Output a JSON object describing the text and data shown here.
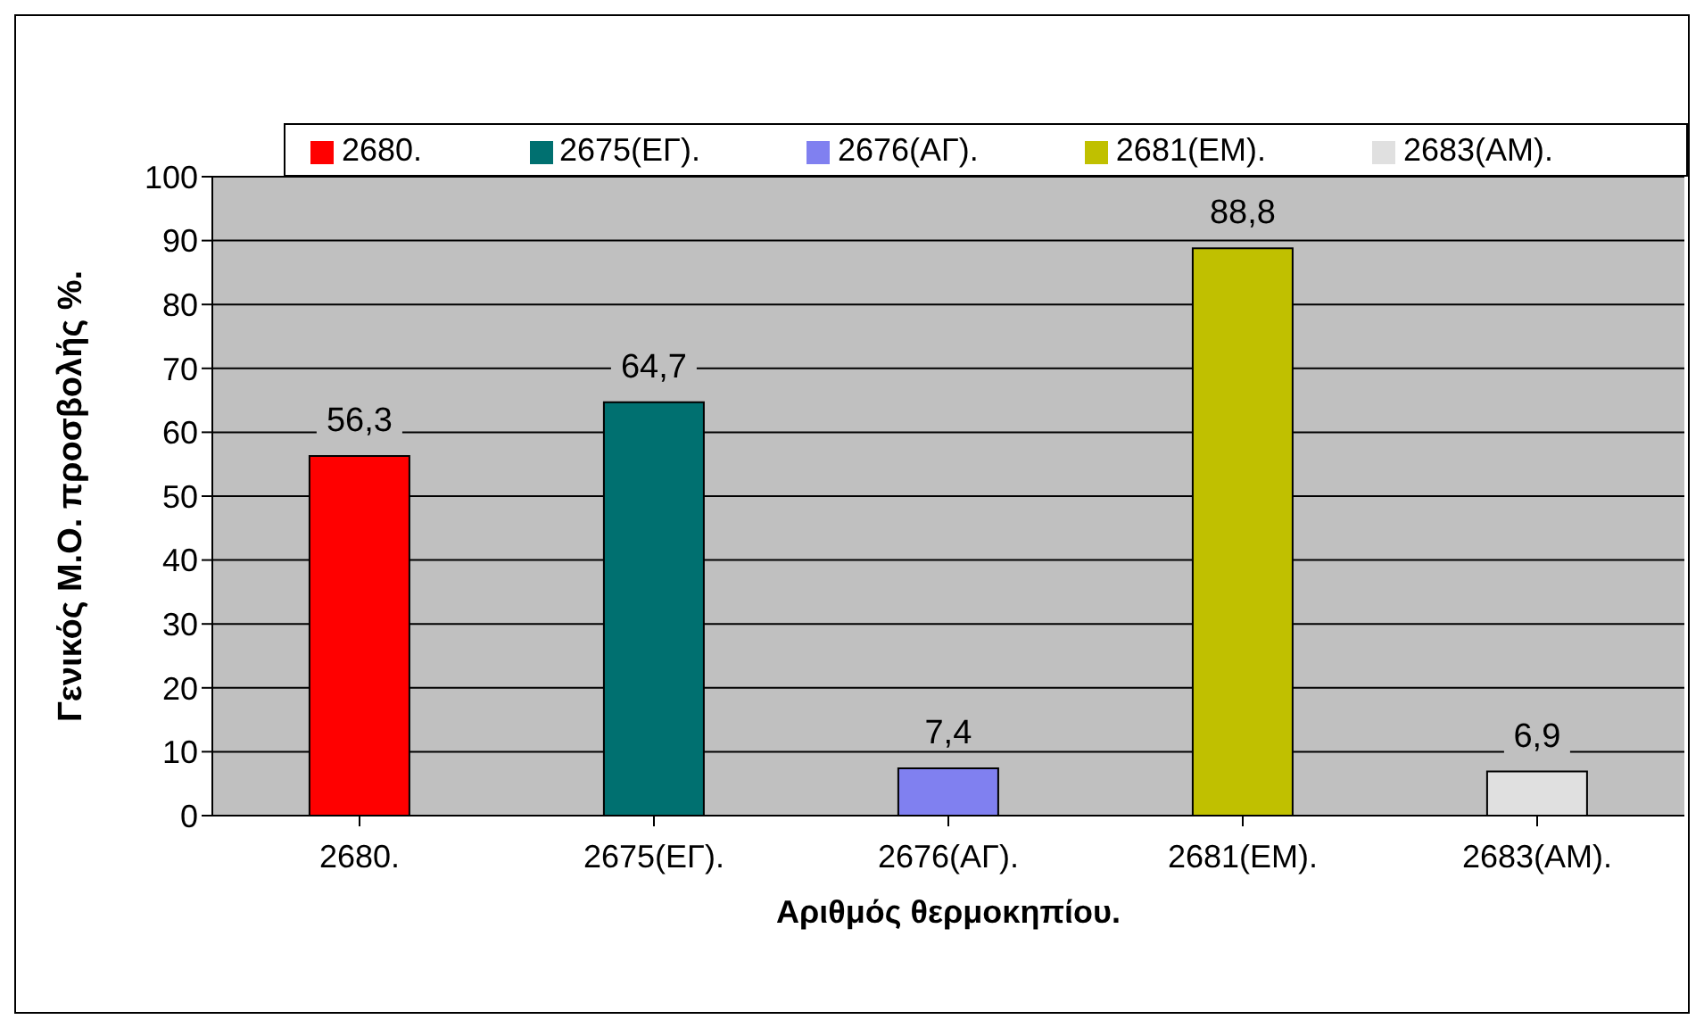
{
  "chart_data": {
    "type": "bar",
    "xlabel": "Αριθμός θερμοκηπίου.",
    "ylabel": "Γενικός Μ.Ο. προσβολής %.",
    "categories": [
      "2680.",
      "2675(ΕΓ).",
      "2676(ΑΓ).",
      "2681(ΕΜ).",
      "2683(ΑΜ)."
    ],
    "stacked": true,
    "series": [
      {
        "name": "2680.",
        "color": "#ff0000",
        "values": [
          56.3,
          null,
          null,
          null,
          null
        ],
        "value_labels": [
          "56,3",
          null,
          null,
          null,
          null
        ]
      },
      {
        "name": "2675(ΕΓ).",
        "color": "#007070",
        "values": [
          null,
          64.7,
          null,
          null,
          null
        ],
        "value_labels": [
          null,
          "64,7",
          null,
          null,
          null
        ]
      },
      {
        "name": "2676(ΑΓ).",
        "color": "#8080f0",
        "values": [
          null,
          null,
          7.4,
          null,
          null
        ],
        "value_labels": [
          null,
          null,
          "7,4",
          null,
          null
        ]
      },
      {
        "name": "2681(ΕΜ).",
        "color": "#c0c000",
        "values": [
          null,
          null,
          null,
          88.8,
          null
        ],
        "value_labels": [
          null,
          null,
          null,
          "88,8",
          null
        ]
      },
      {
        "name": "2683(ΑΜ).",
        "color": "#e0e0e0",
        "values": [
          null,
          null,
          null,
          null,
          6.9
        ],
        "value_labels": [
          null,
          null,
          null,
          null,
          "6,9"
        ]
      }
    ],
    "ylim": [
      0,
      100
    ],
    "yticks": [
      0,
      10,
      20,
      30,
      40,
      50,
      60,
      70,
      80,
      90,
      100
    ],
    "grid": "y",
    "legend": "top"
  }
}
